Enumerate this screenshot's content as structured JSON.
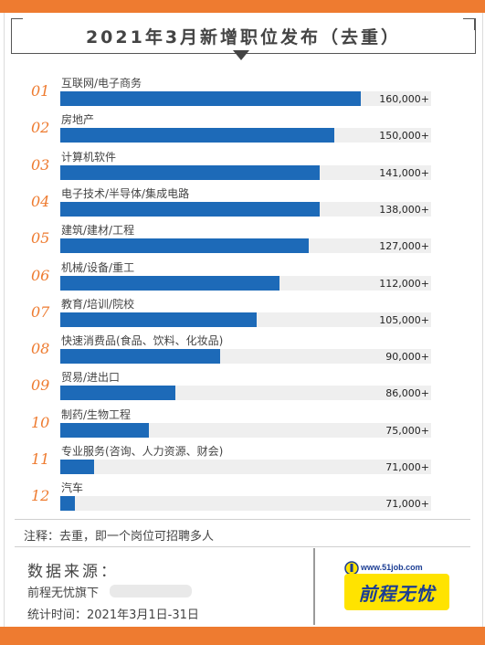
{
  "title": "2021年3月新增职位发布（去重）",
  "chart_data": {
    "type": "bar",
    "orientation": "horizontal",
    "title": "2021年3月新增职位发布（去重）",
    "ranks": [
      "01",
      "02",
      "03",
      "04",
      "05",
      "06",
      "07",
      "08",
      "09",
      "10",
      "11",
      "12"
    ],
    "categories": [
      "互联网/电子商务",
      "房地产",
      "计算机软件",
      "电子技术/半导体/集成电路",
      "建筑/建材/工程",
      "机械/设备/重工",
      "教育/培训/院校",
      "快速消费品(食品、饮料、化妆品)",
      "贸易/进出口",
      "制药/生物工程",
      "专业服务(咨询、人力资源、财会)",
      "汽车"
    ],
    "values": [
      160000,
      150000,
      141000,
      138000,
      127000,
      112000,
      105000,
      90000,
      86000,
      75000,
      71000,
      71000
    ],
    "value_labels": [
      "160,000+",
      "150,000+",
      "141,000+",
      "138,000+",
      "127,000+",
      "112,000+",
      "105,000+",
      "90,000+",
      "86,000+",
      "75,000+",
      "71,000+",
      "71,000+"
    ],
    "bar_fill": [
      0.81,
      0.74,
      0.7,
      0.7,
      0.67,
      0.59,
      0.53,
      0.43,
      0.31,
      0.24,
      0.09,
      0.04
    ],
    "bar_color": "#1d6ab8",
    "track_color": "#efefef",
    "rank_color": "#ee7b30"
  },
  "note": "注释：去重，即一个岗位可招聘多人",
  "source": {
    "title": "数据来源：",
    "line1": "前程无忧旗下",
    "line1_suffix": ":",
    "line2": "统计时间：2021年3月1日-31日"
  },
  "logo": {
    "url": "www.51job.com",
    "text": "前程无忧"
  },
  "colors": {
    "accent": "#ee7b30",
    "logo_bg": "#ffe300",
    "logo_fg": "#1b3d93"
  }
}
